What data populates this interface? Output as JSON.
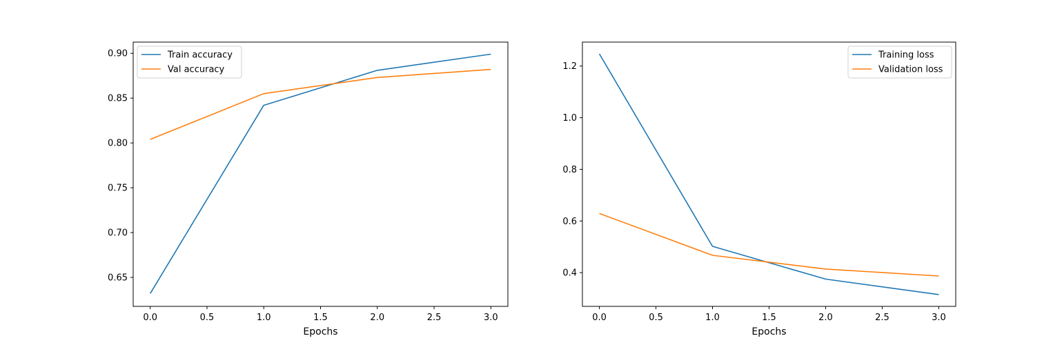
{
  "chart_data": [
    {
      "type": "line",
      "xlabel": "Epochs",
      "ylabel": "",
      "title": "",
      "xlim": [
        -0.15,
        3.15
      ],
      "ylim": [
        0.6177,
        0.9125
      ],
      "xticks": [
        0.0,
        0.5,
        1.0,
        1.5,
        2.0,
        2.5,
        3.0
      ],
      "xtick_labels": [
        "0.0",
        "0.5",
        "1.0",
        "1.5",
        "2.0",
        "2.5",
        "3.0"
      ],
      "yticks": [
        0.65,
        0.7,
        0.75,
        0.8,
        0.85,
        0.9
      ],
      "ytick_labels": [
        "0.65",
        "0.70",
        "0.75",
        "0.80",
        "0.85",
        "0.90"
      ],
      "grid": false,
      "legend_position": "upper left",
      "series": [
        {
          "name": "Train accuracy",
          "color": "#1f77b4",
          "x": [
            0,
            1,
            2,
            3
          ],
          "y": [
            0.632,
            0.842,
            0.881,
            0.899
          ]
        },
        {
          "name": "Val accuracy",
          "color": "#ff7f0e",
          "x": [
            0,
            1,
            2,
            3
          ],
          "y": [
            0.804,
            0.855,
            0.873,
            0.882
          ]
        }
      ]
    },
    {
      "type": "line",
      "xlabel": "Epochs",
      "ylabel": "",
      "title": "",
      "xlim": [
        -0.15,
        3.15
      ],
      "ylim": [
        0.2694,
        1.2928
      ],
      "xticks": [
        0.0,
        0.5,
        1.0,
        1.5,
        2.0,
        2.5,
        3.0
      ],
      "xtick_labels": [
        "0.0",
        "0.5",
        "1.0",
        "1.5",
        "2.0",
        "2.5",
        "3.0"
      ],
      "yticks": [
        0.4,
        0.6,
        0.8,
        1.0,
        1.2
      ],
      "ytick_labels": [
        "0.4",
        "0.6",
        "0.8",
        "1.0",
        "1.2"
      ],
      "grid": false,
      "legend_position": "upper right",
      "series": [
        {
          "name": "Training loss",
          "color": "#1f77b4",
          "x": [
            0,
            1,
            2,
            3
          ],
          "y": [
            1.247,
            0.502,
            0.375,
            0.315
          ]
        },
        {
          "name": "Validation loss",
          "color": "#ff7f0e",
          "x": [
            0,
            1,
            2,
            3
          ],
          "y": [
            0.629,
            0.467,
            0.414,
            0.387
          ]
        }
      ]
    }
  ]
}
